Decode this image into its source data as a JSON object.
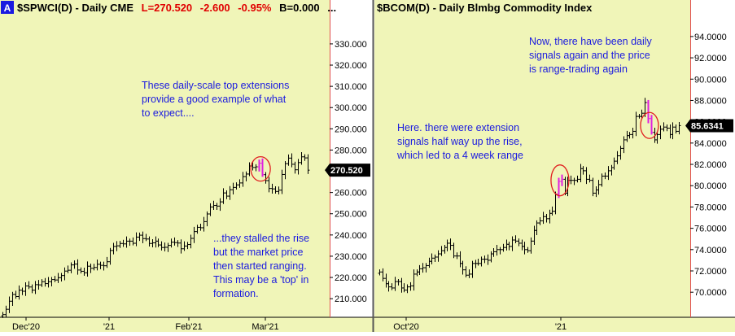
{
  "colors": {
    "background": "#f0f5b8",
    "axis_background": "#ffffff",
    "price_axis_line": "#e05050",
    "bars": "#000000",
    "annotation_text": "#1a1ae0",
    "circle": "#e02020",
    "signal_bar": "#e020e0",
    "header_value": "#e00000",
    "badge_fill": "#000000",
    "badge_text": "#ffffff",
    "panel_badge_fill": "#1a1ae0"
  },
  "left": {
    "panel_badge": "A",
    "header_title": "$SPWCI(D) - Daily  CME",
    "header_last": "L=270.520",
    "header_change": "-2.600",
    "header_pct": "-0.95%",
    "header_b": "B=0.000",
    "header_more": "...",
    "last_label": "270.520",
    "annotation_top": [
      "These daily-scale top extensions",
      "provide a good example of what",
      "to expect...."
    ],
    "annotation_bottom": [
      "...they stalled the rise",
      "but the market price",
      "then started ranging.",
      "This may be a 'top' in",
      "formation."
    ]
  },
  "right": {
    "header_title": "$BCOM(D) - Daily  Blmbg Commodity Index",
    "last_label": "85.6341",
    "annotation_top": [
      "Now, there have been daily",
      "signals again and the price",
      "is range-trading again"
    ],
    "annotation_mid": [
      "Here. there were extension",
      "signals half way up the rise,",
      "which led to a 4 week range"
    ]
  },
  "chart_data": [
    {
      "type": "bar",
      "name": "$SPWCI(D)",
      "x_tick_labels": [
        "Dec'20",
        "'21",
        "Feb'21",
        "Mar'21"
      ],
      "y_ticks": [
        210,
        220,
        230,
        240,
        250,
        260,
        270,
        280,
        290,
        300,
        310,
        320,
        330
      ],
      "y_tick_labels": [
        "210.000",
        "220.000",
        "230.000",
        "240.000",
        "250.000",
        "260.000",
        "270.000",
        "280.000",
        "290.000",
        "300.000",
        "310.000",
        "320.000",
        "330.000"
      ],
      "ylim": [
        202,
        343
      ],
      "last": 270.52,
      "closes": [
        202.5,
        205,
        208.8,
        212,
        211,
        214,
        213.5,
        216,
        215.5,
        214,
        216.6,
        216.5,
        218,
        217.1,
        218,
        219,
        218.8,
        219.9,
        220.9,
        223,
        223.4,
        225.9,
        226.3,
        223.5,
        222.9,
        222.2,
        225.3,
        224.3,
        224.7,
        226.2,
        225.7,
        225.5,
        227.4,
        232.7,
        234.6,
        234.9,
        236,
        235.8,
        237.1,
        237.1,
        236.1,
        239,
        239.9,
        238.3,
        238.1,
        236,
        236.3,
        237.1,
        235.3,
        234.1,
        234.2,
        235.1,
        236.6,
        236.4,
        236.2,
        233.5,
        234.8,
        235.5,
        238.4,
        241.6,
        243.6,
        243.4,
        246.3,
        249.9,
        253.2,
        253.9,
        253.6,
        255.6,
        259.8,
        258.3,
        261.3,
        262.4,
        263.6,
        264.5,
        267.5,
        268.7,
        272.5,
        271.8,
        272.1,
        273.8,
        268.4,
        265.6,
        261.9,
        261.7,
        260.5,
        261.1,
        268.5,
        273.6,
        276.2,
        273.3,
        270.7,
        274.1,
        276.8,
        276.3,
        270.52
      ],
      "signal_bars": [
        79,
        80
      ]
    },
    {
      "type": "bar",
      "name": "$BCOM(D)",
      "x_tick_labels": [
        "Oct'20",
        "'21"
      ],
      "y_ticks": [
        70,
        72,
        74,
        76,
        78,
        80,
        82,
        84,
        86,
        88,
        90,
        92,
        94
      ],
      "y_tick_labels": [
        "70.0000",
        "72.0000",
        "74.0000",
        "76.0000",
        "78.0000",
        "80.0000",
        "82.0000",
        "84.0000",
        "86.0000",
        "88.0000",
        "90.0000",
        "92.0000",
        "94.0000"
      ],
      "ylim": [
        67.8,
        95.9
      ],
      "last": 85.6341,
      "closes": [
        71.9,
        71.3,
        70.8,
        70.5,
        70.4,
        71,
        71,
        70.4,
        70.2,
        70.5,
        70.6,
        71.7,
        71.9,
        72.2,
        72.3,
        72.5,
        72.9,
        73.2,
        73.3,
        73.6,
        73.9,
        74.2,
        74.6,
        74.4,
        73.4,
        73.4,
        72.7,
        72.1,
        71.6,
        71.7,
        72.7,
        72.7,
        72.7,
        73.1,
        73.1,
        73,
        73.6,
        73.8,
        74,
        74,
        74.2,
        74.5,
        74.3,
        74.9,
        74.8,
        74.6,
        74.3,
        74,
        73.9,
        74.8,
        75.8,
        76.5,
        76.7,
        77.1,
        76.9,
        77.4,
        77.6,
        79.2,
        80.4,
        80.6,
        79.3,
        80.5,
        80.5,
        80.5,
        80.6,
        81.6,
        81.4,
        80.6,
        80.5,
        79.3,
        79.6,
        80.1,
        80.9,
        80.9,
        81.4,
        81.7,
        82.3,
        82.8,
        83.5,
        84.3,
        84.7,
        84.8,
        85.1,
        86.5,
        86.5,
        86.8,
        87.8,
        86.3,
        85,
        84.3,
        84.8,
        85.3,
        85.5,
        85.4,
        84.8,
        85.5,
        85.1,
        85.6341
      ],
      "signal_bars": [
        58,
        59,
        87,
        88
      ]
    }
  ]
}
